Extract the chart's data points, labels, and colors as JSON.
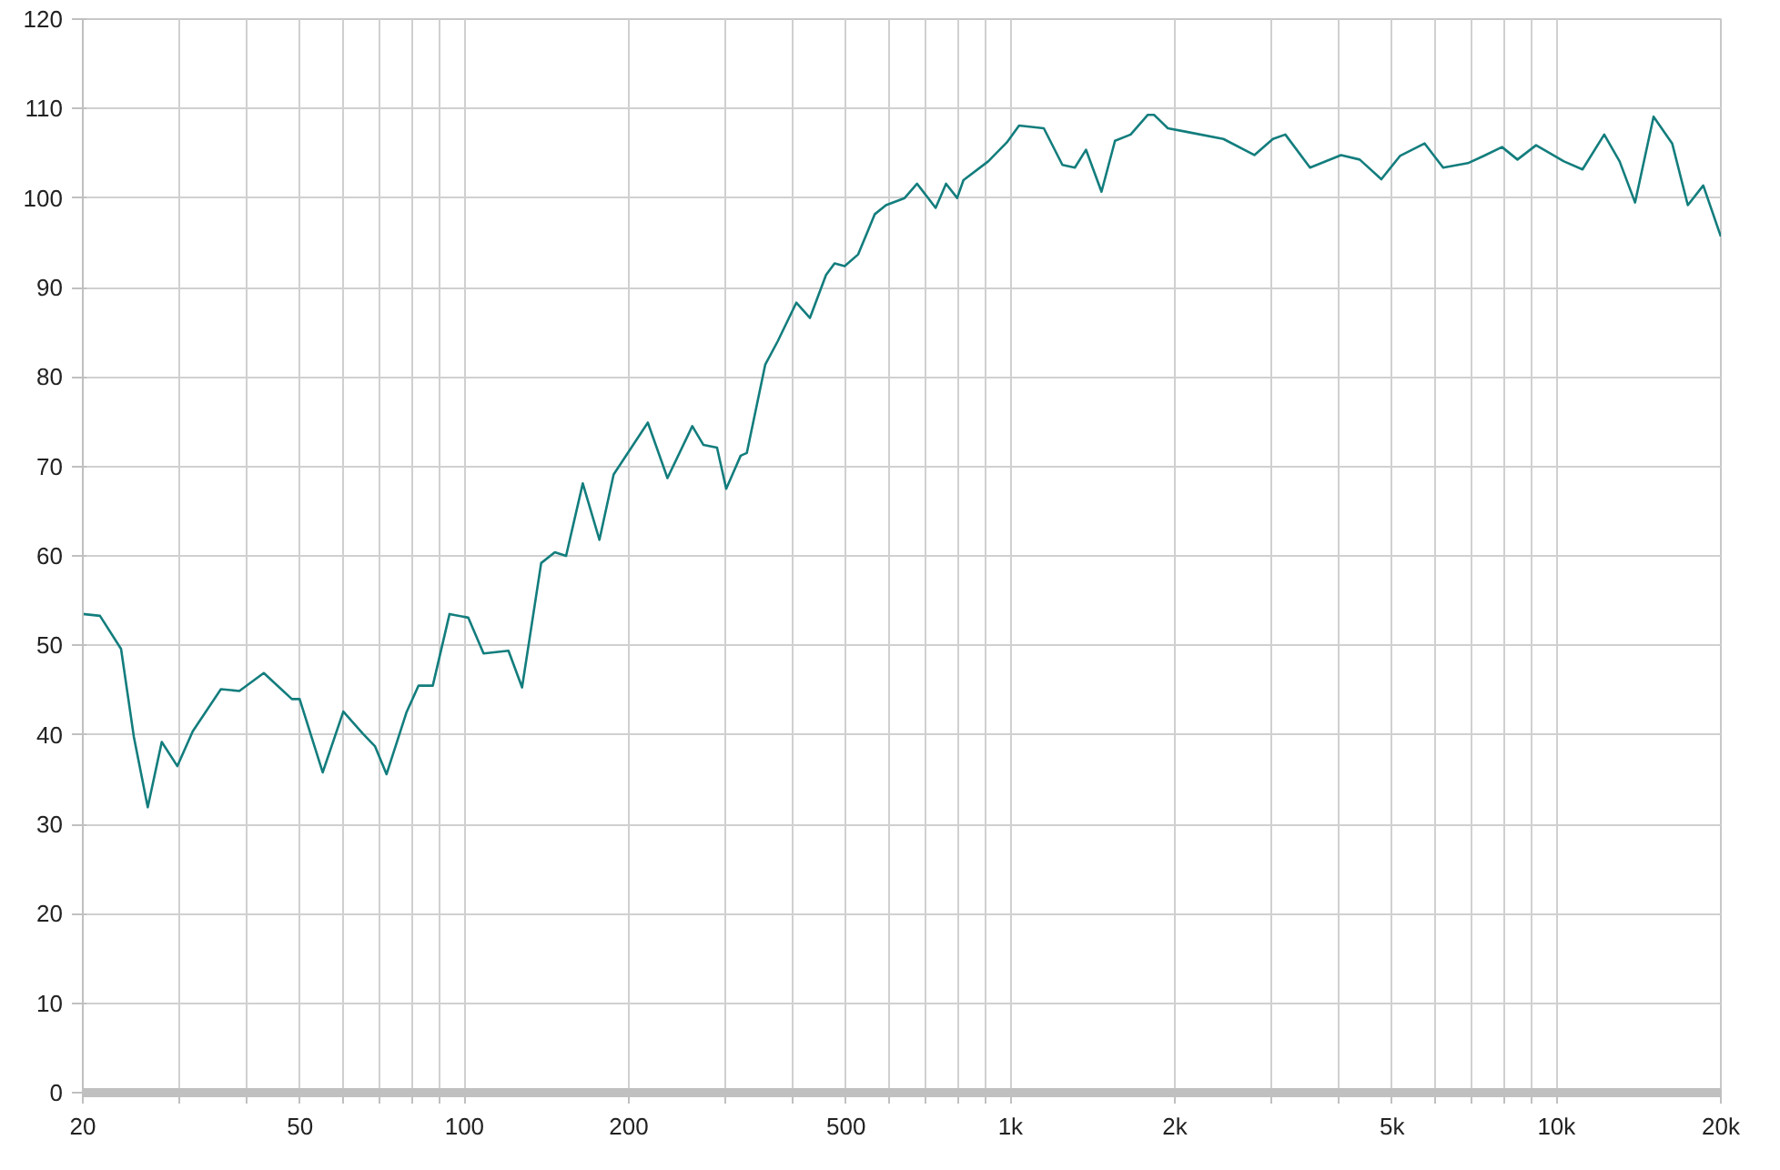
{
  "chart_data": {
    "type": "line",
    "log": "x",
    "grid": true,
    "line_style": "solid",
    "xlim": [
      20,
      20000
    ],
    "ylim": [
      0,
      120
    ],
    "xticks": [
      20,
      {
        "value": 30,
        "label": null
      },
      {
        "value": 40,
        "label": null
      },
      50,
      {
        "value": 60,
        "label": null
      },
      {
        "value": 70,
        "label": null
      },
      {
        "value": 80,
        "label": null
      },
      {
        "value": 90,
        "label": null
      },
      100,
      200,
      {
        "value": 300,
        "label": null
      },
      {
        "value": 400,
        "label": null
      },
      500,
      {
        "value": 600,
        "label": null
      },
      {
        "value": 700,
        "label": null
      },
      {
        "value": 800,
        "label": null
      },
      {
        "value": 900,
        "label": null
      },
      {
        "value": 1000,
        "label": "1k"
      },
      {
        "value": 2000,
        "label": "2k"
      },
      {
        "value": 3000,
        "label": null
      },
      {
        "value": 4000,
        "label": null
      },
      {
        "value": 5000,
        "label": "5k"
      },
      {
        "value": 6000,
        "label": null
      },
      {
        "value": 7000,
        "label": null
      },
      {
        "value": 8000,
        "label": null
      },
      {
        "value": 9000,
        "label": null
      },
      {
        "value": 10000,
        "label": "10k"
      },
      {
        "value": 20000,
        "label": "20k"
      }
    ],
    "yticks": [
      0,
      10,
      20,
      30,
      40,
      50,
      60,
      70,
      80,
      90,
      100,
      110,
      120
    ],
    "series": [
      {
        "color": "#137d7d",
        "x": [
          20,
          21.5,
          23.5,
          24.8,
          26.3,
          27.9,
          29.8,
          31.8,
          35.8,
          38.7,
          42.9,
          48.3,
          49.9,
          55.0,
          60.0,
          65.2,
          68.6,
          72.0,
          78.3,
          82.4,
          87.5,
          93.9,
          101.6,
          108.4,
          120.4,
          127.5,
          138.2,
          146.4,
          153.5,
          164.7,
          176.7,
          187.6,
          216.7,
          235.4,
          261.4,
          274.0,
          290.1,
          301.6,
          320.5,
          328.9,
          355.6,
          374.8,
          405.3,
          429.2,
          459.4,
          476.3,
          497.0,
          526.1,
          564.4,
          591.6,
          640.0,
          674.5,
          729.4,
          762.1,
          798.7,
          820.1,
          910.4,
          984.4,
          1037,
          1151,
          1245,
          1312,
          1375,
          1468,
          1554,
          1660,
          1785,
          1832,
          1942,
          2100,
          2455,
          2797,
          3024,
          3187,
          3537,
          4031,
          4361,
          4778,
          5168,
          5735,
          6201,
          6883,
          7350,
          7948,
          8483,
          9176,
          10320,
          11160,
          12230,
          13050,
          13930,
          15060,
          16290,
          17400,
          18570,
          20000
        ],
        "values": [
          53.5,
          53.3,
          49.6,
          39.8,
          31.9,
          39.2,
          36.5,
          40.4,
          45.1,
          44.9,
          46.9,
          44.0,
          44.0,
          35.8,
          42.6,
          40.1,
          38.7,
          35.6,
          42.5,
          45.5,
          45.5,
          53.5,
          53.1,
          49.1,
          49.4,
          45.3,
          59.2,
          60.4,
          60.0,
          68.1,
          61.8,
          69.1,
          74.9,
          68.7,
          74.5,
          72.4,
          72.1,
          67.5,
          71.2,
          71.5,
          81.4,
          84.0,
          88.3,
          86.6,
          91.4,
          92.7,
          92.4,
          93.7,
          98.2,
          99.2,
          100.0,
          101.6,
          98.9,
          101.6,
          100.0,
          102.0,
          104.1,
          106.2,
          108.1,
          107.8,
          103.7,
          103.4,
          105.4,
          100.7,
          106.4,
          107.1,
          109.3,
          109.3,
          107.8,
          107.4,
          106.6,
          104.8,
          106.6,
          107.1,
          103.4,
          104.8,
          104.3,
          102.1,
          104.7,
          106.1,
          103.4,
          103.9,
          104.7,
          105.7,
          104.3,
          105.9,
          104.1,
          103.2,
          107.1,
          104.1,
          99.5,
          109.1,
          106.1,
          99.2,
          101.4,
          95.7
        ]
      }
    ]
  }
}
